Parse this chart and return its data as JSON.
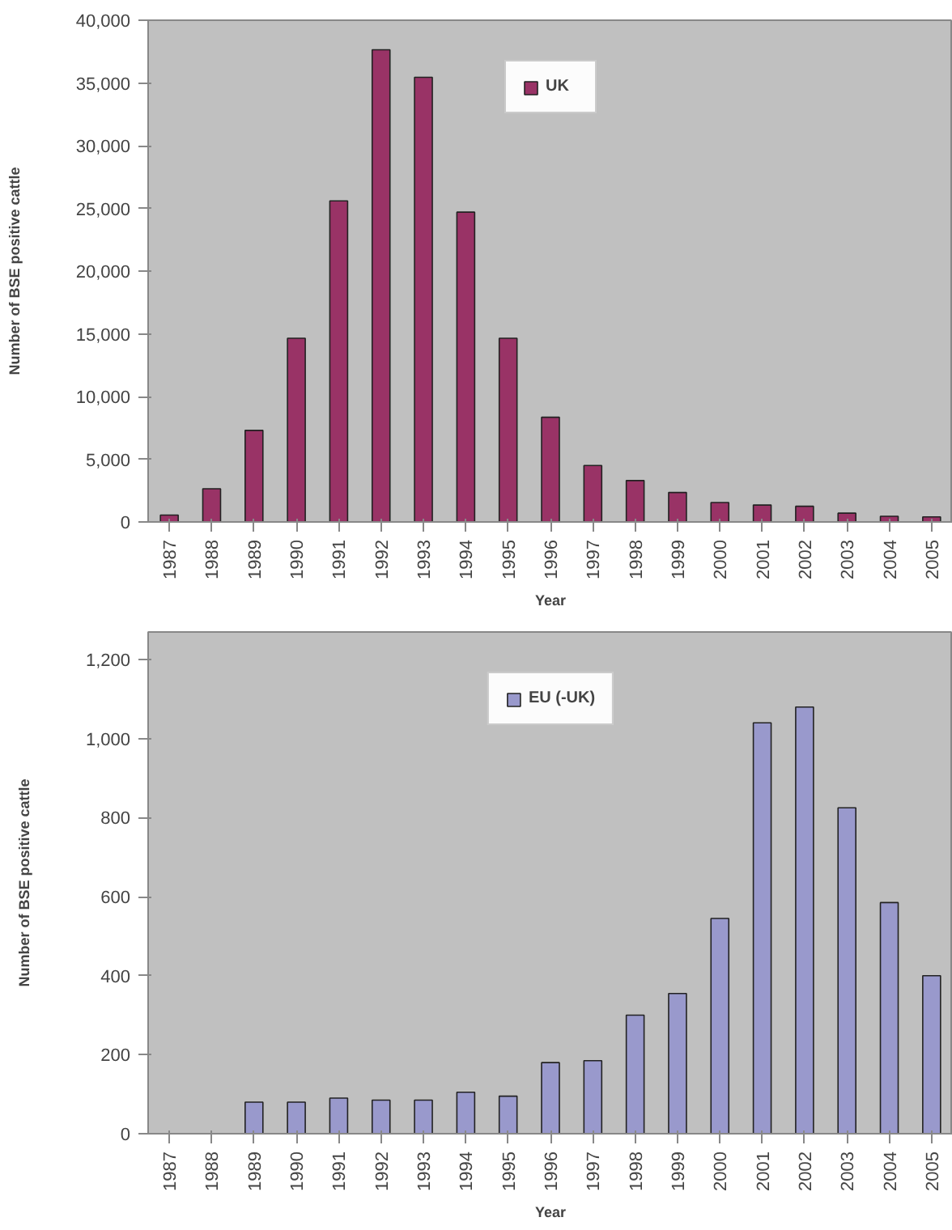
{
  "chart_data": [
    {
      "type": "bar",
      "xlabel": "Year",
      "ylabel": "Number of BSE positive cattle",
      "categories": [
        "1987",
        "1988",
        "1989",
        "1990",
        "1991",
        "1992",
        "1993",
        "1994",
        "1995",
        "1996",
        "1997",
        "1998",
        "1999",
        "2000",
        "2001",
        "2002",
        "2003",
        "2004",
        "2005"
      ],
      "series": [
        {
          "name": "UK",
          "color": "#993366",
          "values": [
            550,
            2650,
            7300,
            14650,
            25600,
            37650,
            35450,
            24700,
            14650,
            8350,
            4500,
            3300,
            2350,
            1550,
            1350,
            1250,
            700,
            450,
            400
          ]
        }
      ],
      "ylim": [
        0,
        40000
      ],
      "yticks": [
        {
          "value": 0,
          "label": "0"
        },
        {
          "value": 5000,
          "label": "5,000"
        },
        {
          "value": 10000,
          "label": "10,000"
        },
        {
          "value": 15000,
          "label": "15,000"
        },
        {
          "value": 20000,
          "label": "20,000"
        },
        {
          "value": 25000,
          "label": "25,000"
        },
        {
          "value": 30000,
          "label": "30,000"
        },
        {
          "value": 35000,
          "label": "35,000"
        },
        {
          "value": 40000,
          "label": "40,000"
        }
      ],
      "grid": false,
      "legend": "top"
    },
    {
      "type": "bar",
      "xlabel": "Year",
      "ylabel": "Number of BSE positive cattle",
      "categories": [
        "1987",
        "1988",
        "1989",
        "1990",
        "1991",
        "1992",
        "1993",
        "1994",
        "1995",
        "1996",
        "1997",
        "1998",
        "1999",
        "2000",
        "2001",
        "2002",
        "2003",
        "2004",
        "2005"
      ],
      "series": [
        {
          "name": "EU (-UK)",
          "color": "#9999cc",
          "values": [
            null,
            null,
            80,
            80,
            90,
            85,
            85,
            105,
            95,
            180,
            185,
            300,
            355,
            545,
            1040,
            1080,
            825,
            585,
            400
          ]
        }
      ],
      "ylim": [
        0,
        1270
      ],
      "yticks": [
        {
          "value": 0,
          "label": "0"
        },
        {
          "value": 200,
          "label": "200"
        },
        {
          "value": 400,
          "label": "400"
        },
        {
          "value": 600,
          "label": "600"
        },
        {
          "value": 800,
          "label": "800"
        },
        {
          "value": 1000,
          "label": "1,000"
        },
        {
          "value": 1200,
          "label": "1,200"
        }
      ],
      "grid": false,
      "legend": "top"
    }
  ]
}
